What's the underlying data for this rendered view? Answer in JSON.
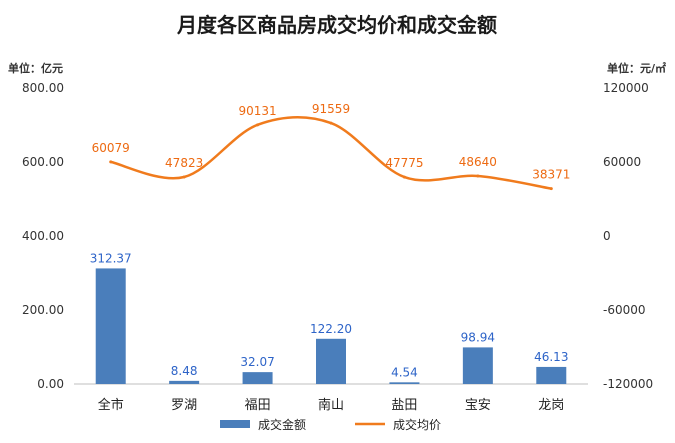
{
  "chart_data": {
    "type": "bar+line",
    "title": "月度各区商品房成交均价和成交金额",
    "left_unit": "单位：亿元",
    "right_unit": "单位：元/㎡",
    "categories": [
      "全市",
      "罗湖",
      "福田",
      "南山",
      "盐田",
      "宝安",
      "龙岗"
    ],
    "series": [
      {
        "name": "成交金额",
        "type": "bar",
        "axis": "left",
        "color": "#4a7ebb",
        "values": [
          312.37,
          8.48,
          32.07,
          122.2,
          4.54,
          98.94,
          46.13
        ],
        "labels": [
          "312.37",
          "8.48",
          "32.07",
          "122.20",
          "4.54",
          "98.94",
          "46.13"
        ]
      },
      {
        "name": "成交均价",
        "type": "line",
        "axis": "right",
        "color": "#f07b1d",
        "values": [
          60079,
          47823,
          90131,
          91559,
          47775,
          48640,
          38371
        ],
        "labels": [
          "60079",
          "47823",
          "90131",
          "91559",
          "47775",
          "48640",
          "38371"
        ]
      }
    ],
    "left_axis": {
      "ylim": [
        0,
        800
      ],
      "ticks": [
        "0.00",
        "200.00",
        "400.00",
        "600.00",
        "800.00"
      ]
    },
    "right_axis": {
      "ylim": [
        -120000,
        120000
      ],
      "ticks": [
        "-120000",
        "-60000",
        "0",
        "60000",
        "120000"
      ]
    },
    "grid": false,
    "legend_position": "bottom"
  }
}
